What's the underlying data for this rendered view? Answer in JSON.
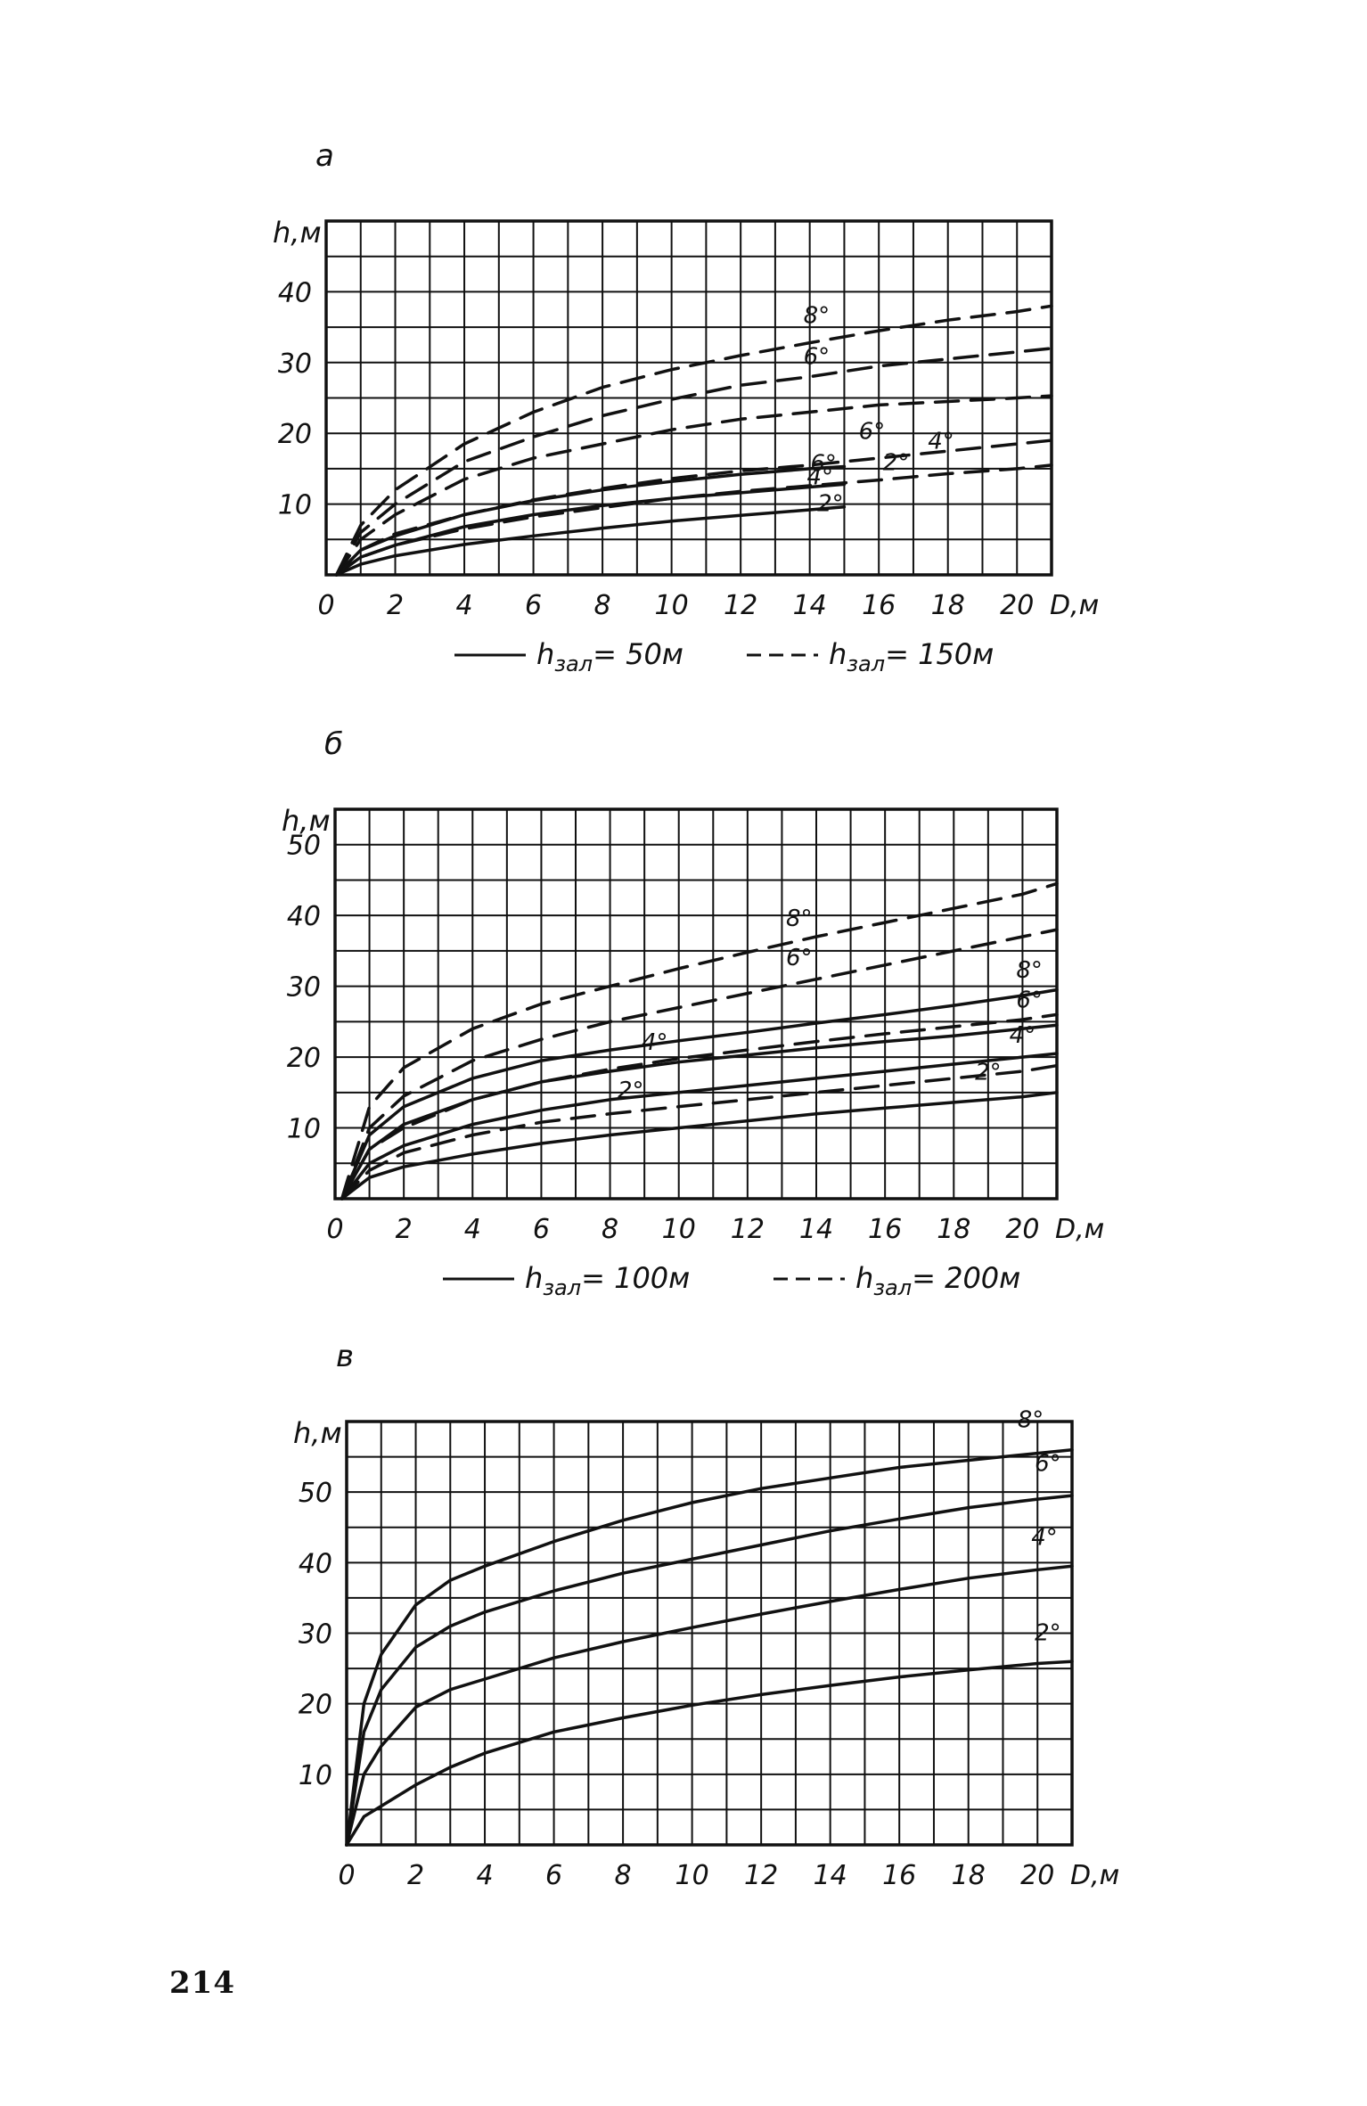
{
  "page_number": "214",
  "chart_data": [
    {
      "type": "line",
      "panel_label": "а",
      "y_axis_label": "h,м",
      "x_axis_label": "D,м",
      "xlim": [
        0,
        21
      ],
      "ylim": [
        0,
        50
      ],
      "grid": true,
      "x_ticks": [
        "0",
        "2",
        "4",
        "6",
        "8",
        "10",
        "12",
        "14",
        "16",
        "18",
        "20"
      ],
      "y_ticks": [
        "10",
        "20",
        "30",
        "40"
      ],
      "legend": [
        {
          "style": "solid",
          "text": "h",
          "sub": "зал",
          "value": "= 50м"
        },
        {
          "style": "dashed",
          "text": "h",
          "sub": "зал",
          "value": "= 150м"
        }
      ],
      "series": [
        {
          "label": "2°",
          "style": "solid",
          "x": [
            0.3,
            1,
            2,
            4,
            6,
            8,
            10,
            12,
            14,
            15
          ],
          "y": [
            0,
            1.5,
            2.7,
            4.3,
            5.5,
            6.6,
            7.6,
            8.4,
            9.2,
            9.6
          ]
        },
        {
          "label": "4°",
          "style": "solid",
          "x": [
            0.3,
            1,
            2,
            4,
            6,
            8,
            10,
            12,
            14,
            15
          ],
          "y": [
            0,
            2.5,
            4.2,
            6.8,
            8.5,
            9.8,
            10.8,
            11.6,
            12.4,
            12.8
          ]
        },
        {
          "label": "6°",
          "style": "solid",
          "x": [
            0.3,
            1,
            2,
            4,
            6,
            8,
            10,
            12,
            14,
            15
          ],
          "y": [
            0,
            3.5,
            5.5,
            8.5,
            10.5,
            12,
            13.2,
            14.2,
            15,
            15.3
          ]
        },
        {
          "label": "2°",
          "style": "dashed",
          "x": [
            0.3,
            1,
            2,
            4,
            6,
            8,
            10,
            12,
            14,
            16,
            18,
            20,
            21
          ],
          "y": [
            0,
            2.5,
            4.2,
            6.5,
            8.2,
            9.5,
            10.8,
            11.8,
            12.6,
            13.4,
            14.3,
            15,
            15.5
          ]
        },
        {
          "label": "4°",
          "style": "dashed",
          "x": [
            0.3,
            1,
            2,
            4,
            6,
            8,
            10,
            12,
            14,
            16,
            18,
            20,
            21
          ],
          "y": [
            0,
            3.5,
            5.8,
            8.5,
            10.6,
            12.2,
            13.6,
            14.7,
            15.5,
            16.5,
            17.5,
            18.5,
            19
          ]
        },
        {
          "label": "6°",
          "style": "dashed",
          "x": [
            0.3,
            1,
            2,
            4,
            6,
            8,
            10,
            12,
            14,
            16,
            18,
            20,
            21
          ],
          "y": [
            0,
            5,
            8.5,
            13.5,
            16.5,
            18.5,
            20.5,
            22,
            23,
            24,
            24.5,
            25,
            25.3
          ]
        },
        {
          "label": "6°",
          "style": "dashed",
          "x": [
            0.3,
            1,
            2,
            4,
            6,
            8,
            10,
            12,
            14,
            16,
            18,
            20,
            21
          ],
          "y": [
            0,
            6,
            10,
            16,
            19.5,
            22.5,
            24.8,
            26.8,
            28,
            29.5,
            30.5,
            31.5,
            32
          ]
        },
        {
          "label": "8°",
          "style": "dashed",
          "x": [
            0.3,
            1,
            2,
            4,
            6,
            8,
            10,
            12,
            14,
            16,
            18,
            20,
            21
          ],
          "y": [
            0,
            7,
            12,
            18.5,
            23,
            26.5,
            29,
            31,
            32.8,
            34.5,
            36,
            37.2,
            38
          ]
        }
      ]
    },
    {
      "type": "line",
      "panel_label": "б",
      "y_axis_label": "h,м",
      "x_axis_label": "D,м",
      "xlim": [
        0,
        21
      ],
      "ylim": [
        0,
        55
      ],
      "grid": true,
      "x_ticks": [
        "0",
        "2",
        "4",
        "6",
        "8",
        "10",
        "12",
        "14",
        "16",
        "18",
        "20"
      ],
      "y_ticks": [
        "10",
        "20",
        "30",
        "40",
        "50"
      ],
      "legend": [
        {
          "style": "solid",
          "text": "h",
          "sub": "зал",
          "value": "= 100м"
        },
        {
          "style": "dashed",
          "text": "h",
          "sub": "зал",
          "value": "= 200м"
        }
      ],
      "series": [
        {
          "label": "2°",
          "style": "solid",
          "x": [
            0.2,
            1,
            2,
            4,
            6,
            8,
            10,
            12,
            14,
            16,
            18,
            20,
            21
          ],
          "y": [
            0,
            3,
            4.5,
            6.3,
            7.8,
            9,
            10,
            11,
            12,
            12.8,
            13.6,
            14.4,
            15
          ]
        },
        {
          "label": "4°",
          "style": "solid",
          "x": [
            0.2,
            1,
            2,
            4,
            6,
            8,
            10,
            12,
            14,
            16,
            18,
            20,
            21
          ],
          "y": [
            0,
            5,
            7.5,
            10.5,
            12.5,
            14,
            15,
            16,
            17,
            18,
            19,
            20,
            20.5
          ]
        },
        {
          "label": "6°",
          "style": "solid",
          "x": [
            0.2,
            1,
            2,
            4,
            6,
            8,
            10,
            12,
            14,
            16,
            18,
            20,
            21
          ],
          "y": [
            0,
            7,
            10.5,
            14,
            16.5,
            18,
            19.3,
            20.3,
            21.3,
            22.2,
            23,
            24,
            24.5
          ]
        },
        {
          "label": "8°",
          "style": "solid",
          "x": [
            0.2,
            1,
            2,
            4,
            6,
            8,
            10,
            12,
            14,
            16,
            18,
            20,
            21
          ],
          "y": [
            0,
            9,
            13,
            17,
            19.5,
            21,
            22.3,
            23.5,
            24.8,
            26,
            27.3,
            28.7,
            29.5
          ]
        },
        {
          "label": "2°",
          "style": "dashed",
          "x": [
            0.2,
            1,
            2,
            4,
            6,
            8,
            10,
            12,
            14,
            16,
            18,
            20,
            21
          ],
          "y": [
            0,
            4,
            6.5,
            9,
            10.8,
            12,
            13,
            14,
            15,
            16,
            17,
            18,
            18.8
          ]
        },
        {
          "label": "4°",
          "style": "dashed",
          "x": [
            0.2,
            1,
            2,
            4,
            6,
            8,
            10,
            12,
            14,
            16,
            18,
            20,
            21
          ],
          "y": [
            0,
            7,
            10,
            14,
            16.5,
            18.3,
            19.8,
            21,
            22.2,
            23.3,
            24.3,
            25.3,
            26
          ]
        },
        {
          "label": "6°",
          "style": "dashed",
          "x": [
            0.2,
            1,
            2,
            4,
            6,
            8,
            10,
            12,
            14,
            16,
            18,
            20,
            21
          ],
          "y": [
            0,
            10,
            14.5,
            19.5,
            22.5,
            25,
            27,
            29,
            31,
            33,
            35,
            37,
            38
          ]
        },
        {
          "label": "8°",
          "style": "dashed",
          "x": [
            0.2,
            1,
            2,
            4,
            6,
            8,
            10,
            12,
            14,
            16,
            18,
            20,
            21
          ],
          "y": [
            0,
            13,
            18.5,
            24,
            27.5,
            30,
            32.5,
            34.8,
            37,
            39,
            41,
            43,
            44.5
          ]
        }
      ]
    },
    {
      "type": "line",
      "panel_label": "в",
      "y_axis_label": "h,м",
      "x_axis_label": "D,м",
      "xlim": [
        0,
        21
      ],
      "ylim": [
        0,
        60
      ],
      "grid": true,
      "x_ticks": [
        "0",
        "2",
        "4",
        "6",
        "8",
        "10",
        "12",
        "14",
        "16",
        "18",
        "20"
      ],
      "y_ticks": [
        "10",
        "20",
        "30",
        "40",
        "50"
      ],
      "series": [
        {
          "label": "2°",
          "style": "solid",
          "x": [
            0,
            0.5,
            1,
            2,
            3,
            4,
            6,
            8,
            10,
            12,
            14,
            16,
            18,
            20,
            21
          ],
          "y": [
            0,
            4,
            5.5,
            8.5,
            11,
            13,
            16,
            18,
            19.8,
            21.3,
            22.6,
            23.8,
            24.8,
            25.7,
            26
          ]
        },
        {
          "label": "4°",
          "style": "solid",
          "x": [
            0,
            0.5,
            1,
            2,
            3,
            4,
            6,
            8,
            10,
            12,
            14,
            16,
            18,
            20,
            21
          ],
          "y": [
            0,
            10,
            14,
            19.5,
            22,
            23.5,
            26.5,
            28.8,
            30.8,
            32.7,
            34.5,
            36.2,
            37.8,
            39,
            39.5
          ]
        },
        {
          "label": "6°",
          "style": "solid",
          "x": [
            0,
            0.5,
            1,
            2,
            3,
            4,
            6,
            8,
            10,
            12,
            14,
            16,
            18,
            20,
            21
          ],
          "y": [
            0,
            16,
            22,
            28,
            31,
            33,
            36,
            38.5,
            40.5,
            42.5,
            44.5,
            46.2,
            47.8,
            49,
            49.5
          ]
        },
        {
          "label": "8°",
          "style": "solid",
          "x": [
            0,
            0.5,
            1,
            2,
            3,
            4,
            6,
            8,
            10,
            12,
            14,
            16,
            18,
            20,
            21
          ],
          "y": [
            0,
            20,
            27,
            34,
            37.5,
            39.5,
            43,
            46,
            48.5,
            50.5,
            52,
            53.5,
            54.5,
            55.5,
            56
          ]
        }
      ]
    }
  ]
}
